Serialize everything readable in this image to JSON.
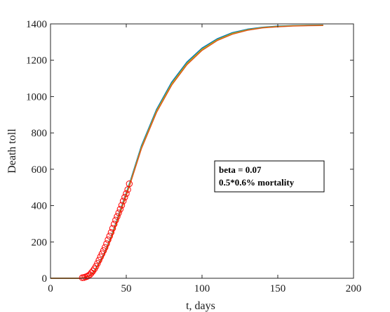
{
  "chart_data": {
    "type": "line",
    "title": "",
    "xlabel": "t, days",
    "ylabel": "Death toll",
    "xlim": [
      0,
      200
    ],
    "ylim": [
      0,
      1400
    ],
    "xticks": [
      0,
      50,
      100,
      150,
      200
    ],
    "yticks": [
      0,
      200,
      400,
      600,
      800,
      1000,
      1200,
      1400
    ],
    "grid": false,
    "annotation": {
      "lines": [
        "beta = 0.07",
        "0.5*0.6% mortality"
      ]
    },
    "colors": {
      "model_curve_1": "#0072bd",
      "model_curve_2": "#77ac30",
      "model_curve_3": "#edb120",
      "model_curve_4": "#d95319",
      "observed": "#ff0000"
    },
    "series": [
      {
        "style": "line",
        "color": "#0072bd",
        "x": [
          0,
          20,
          22,
          25,
          28,
          31,
          35,
          40,
          45,
          50,
          53,
          60,
          70,
          80,
          90,
          100,
          110,
          120,
          130,
          140,
          150,
          160,
          170,
          180
        ],
        "y": [
          0,
          0,
          4,
          12,
          30,
          70,
          130,
          230,
          350,
          470,
          545,
          730,
          930,
          1080,
          1190,
          1267,
          1318,
          1352,
          1371,
          1382,
          1388,
          1391,
          1393,
          1394
        ]
      },
      {
        "style": "line",
        "color": "#77ac30",
        "x": [
          0,
          20,
          22,
          25,
          28,
          31,
          35,
          40,
          45,
          50,
          53,
          60,
          70,
          80,
          90,
          100,
          110,
          120,
          130,
          140,
          150,
          160,
          170,
          180
        ],
        "y": [
          0,
          0,
          3,
          11,
          28,
          67,
          126,
          225,
          344,
          463,
          538,
          722,
          922,
          1072,
          1183,
          1261,
          1313,
          1348,
          1368,
          1380,
          1386,
          1390,
          1392,
          1393
        ]
      },
      {
        "style": "line",
        "color": "#edb120",
        "x": [
          0,
          20,
          22,
          25,
          28,
          31,
          35,
          40,
          45,
          50,
          53,
          60,
          70,
          80,
          90,
          100,
          110,
          120,
          130,
          140,
          150,
          160,
          170,
          180
        ],
        "y": [
          0,
          0,
          3,
          10,
          27,
          65,
          123,
          221,
          339,
          458,
          533,
          717,
          917,
          1067,
          1178,
          1257,
          1310,
          1345,
          1366,
          1379,
          1385,
          1389,
          1391,
          1392
        ]
      },
      {
        "style": "line",
        "color": "#d95319",
        "x": [
          0,
          20,
          22,
          25,
          28,
          31,
          35,
          40,
          45,
          50,
          53,
          60,
          70,
          80,
          90,
          100,
          110,
          120,
          130,
          140,
          150,
          160,
          170,
          180
        ],
        "y": [
          0,
          0,
          3,
          10,
          26,
          64,
          121,
          219,
          336,
          455,
          530,
          713,
          913,
          1063,
          1175,
          1254,
          1308,
          1343,
          1365,
          1378,
          1384,
          1388,
          1390,
          1391
        ]
      },
      {
        "style": "markers",
        "marker": "circle",
        "color": "#ff0000",
        "x": [
          21,
          22,
          23,
          24,
          25,
          26,
          27,
          28,
          29,
          30,
          31,
          32,
          33,
          34,
          35,
          36,
          37,
          38,
          39,
          40,
          41,
          42,
          43,
          44,
          45,
          46,
          47,
          48,
          49,
          50,
          51,
          52
        ],
        "y": [
          3,
          4,
          7,
          10,
          14,
          20,
          30,
          40,
          52,
          66,
          82,
          100,
          118,
          135,
          152,
          170,
          190,
          212,
          232,
          252,
          275,
          298,
          320,
          340,
          360,
          380,
          402,
          425,
          446,
          466,
          488,
          520
        ]
      }
    ]
  }
}
